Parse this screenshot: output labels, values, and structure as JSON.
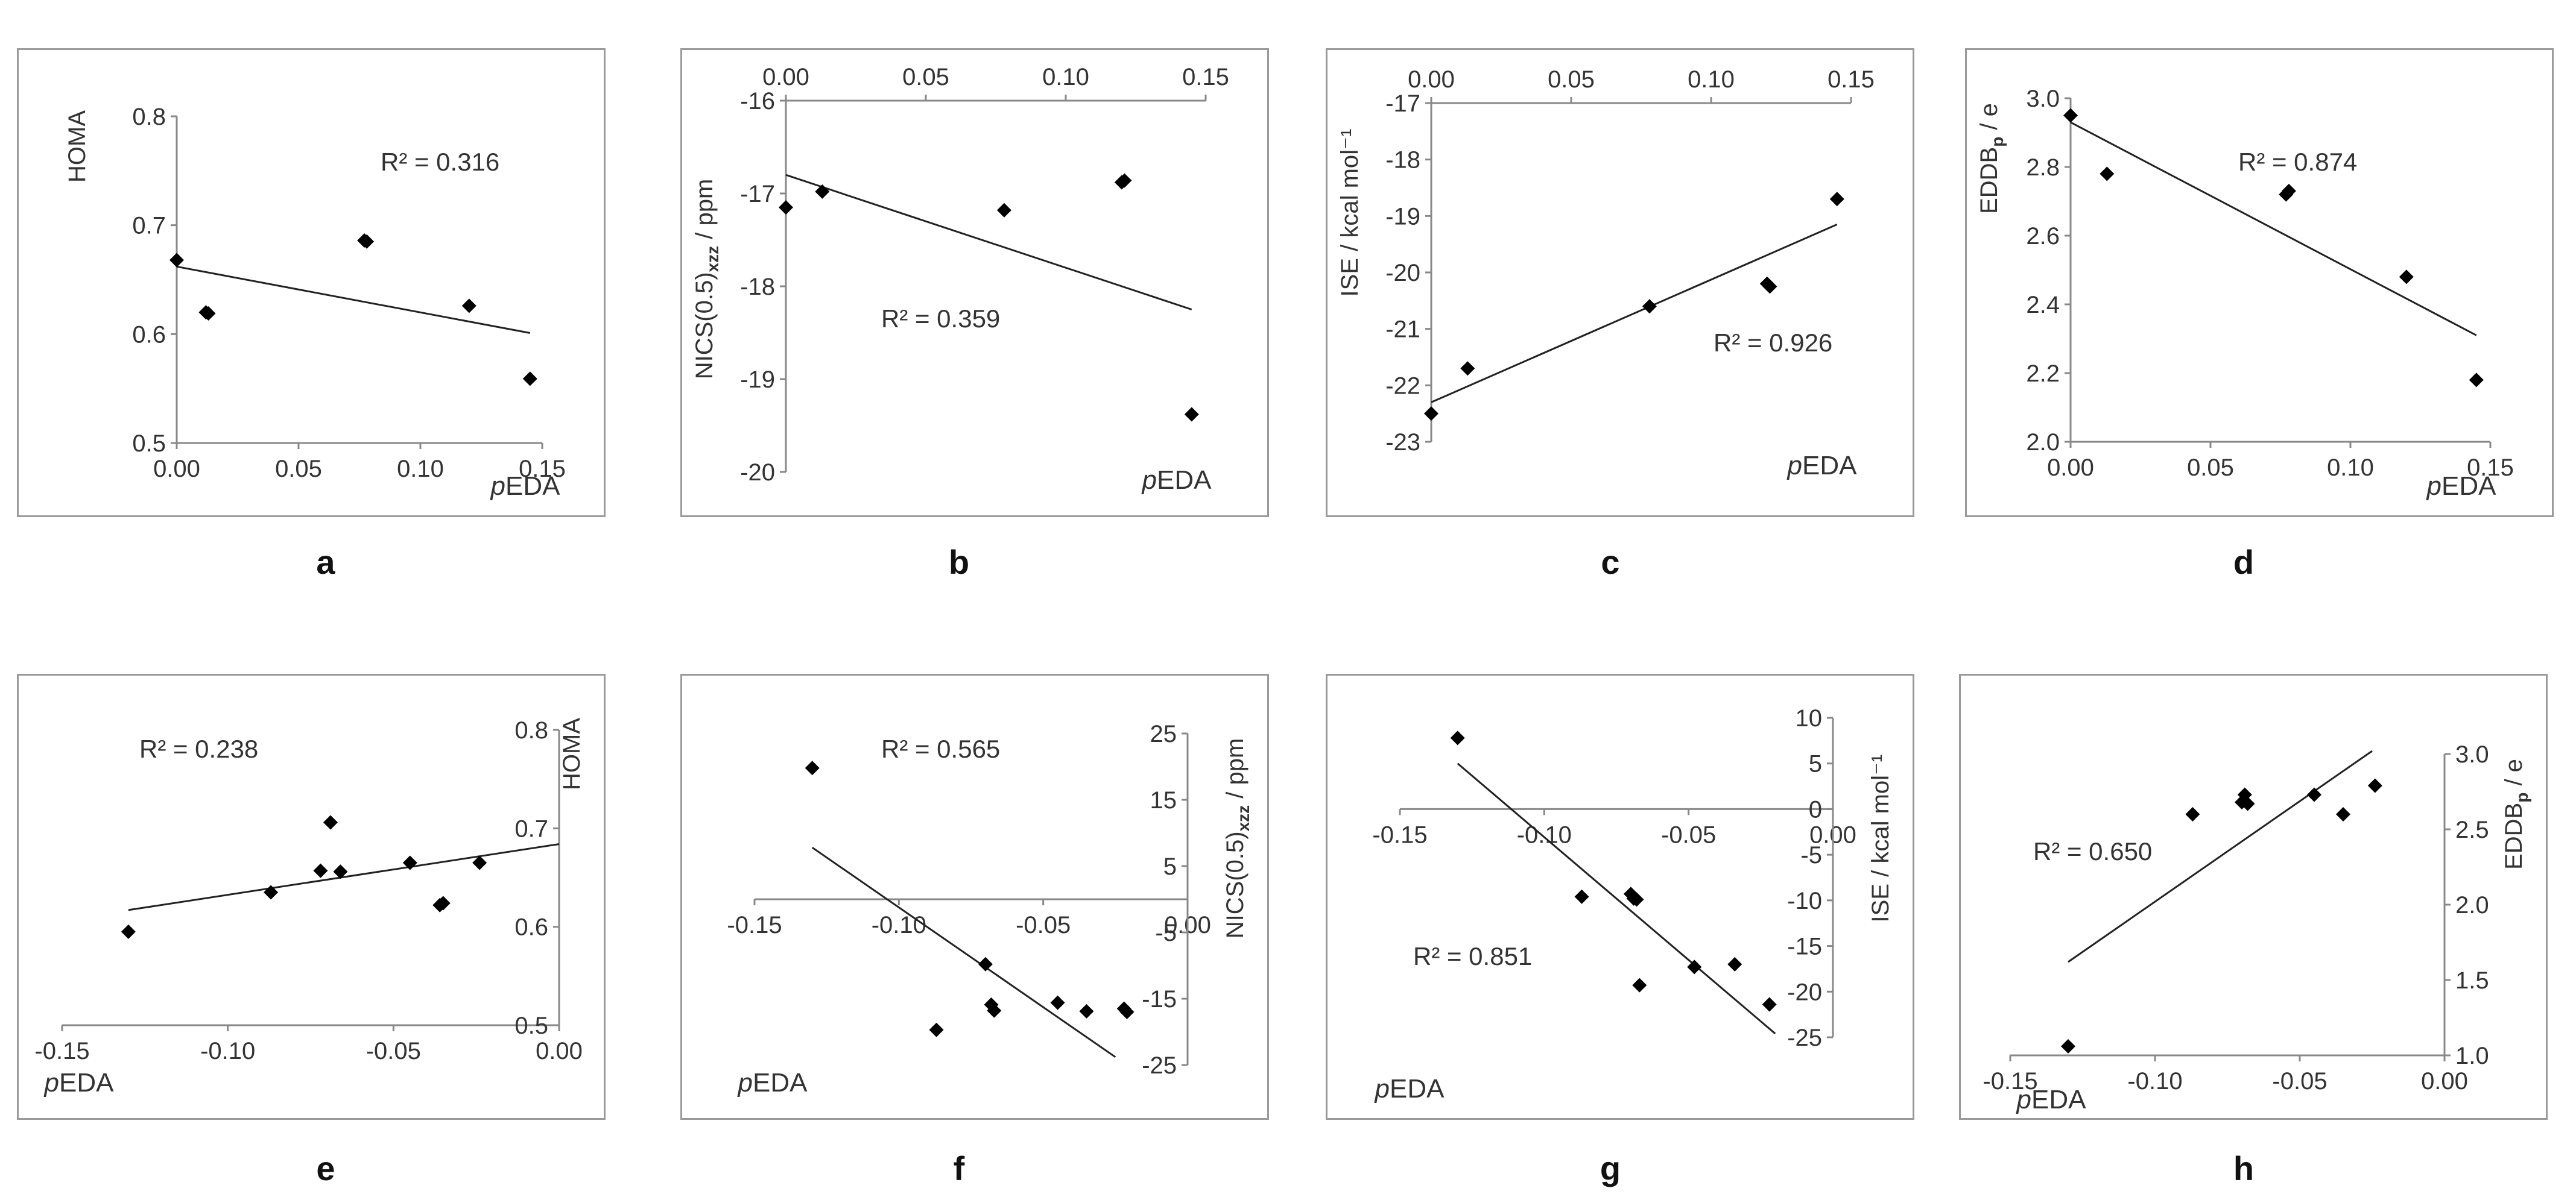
{
  "chart_data": [
    {
      "id": "a",
      "type": "scatter",
      "panel_label": "a",
      "xlabel_prefix": "p",
      "xlabel_rest": "EDA",
      "ylabel": "HOMA",
      "xlim": [
        0,
        0.15
      ],
      "ylim": [
        0.5,
        0.8
      ],
      "xticks": [
        0,
        0.05,
        0.1,
        0.15
      ],
      "xtick_labels": [
        "0.00",
        "0.05",
        "0.10",
        "0.15"
      ],
      "yticks": [
        0.5,
        0.6,
        0.7,
        0.8
      ],
      "ytick_labels": [
        "0.5",
        "0.6",
        "0.7",
        "0.8"
      ],
      "x": [
        0.0,
        0.012,
        0.013,
        0.077,
        0.078,
        0.12,
        0.145
      ],
      "y": [
        0.668,
        0.62,
        0.619,
        0.686,
        0.685,
        0.626,
        0.559
      ],
      "trendline": [
        [
          0.0,
          0.662
        ],
        [
          0.145,
          0.601
        ]
      ],
      "r2": "R² = 0.316"
    },
    {
      "id": "b",
      "type": "scatter",
      "panel_label": "b",
      "xlabel_prefix": "p",
      "xlabel_rest": "EDA",
      "ylabel": "NICS(0.5)",
      "ylabel_sub": "xzz",
      "ylabel_suffix": " / ppm",
      "xlim": [
        0,
        0.15
      ],
      "ylim": [
        -20,
        -16
      ],
      "xticks": [
        0,
        0.05,
        0.1,
        0.15
      ],
      "xtick_labels": [
        "0.00",
        "0.05",
        "0.10",
        "0.15"
      ],
      "yticks": [
        -20,
        -19,
        -18,
        -17,
        -16
      ],
      "ytick_labels": [
        "-20",
        "-19",
        "-18",
        "-17",
        "-16"
      ],
      "x": [
        0.0,
        0.013,
        0.078,
        0.12,
        0.121,
        0.145
      ],
      "y": [
        -17.15,
        -16.98,
        -17.18,
        -16.88,
        -16.86,
        -19.38
      ],
      "trendline": [
        [
          0.0,
          -16.8
        ],
        [
          0.145,
          -18.25
        ]
      ],
      "r2": "R² = 0.359"
    },
    {
      "id": "c",
      "type": "scatter",
      "panel_label": "c",
      "xlabel_prefix": "p",
      "xlabel_rest": "EDA",
      "ylabel": "ISE / kcal mol⁻¹",
      "xlim": [
        0,
        0.15
      ],
      "ylim": [
        -23,
        -17
      ],
      "xticks": [
        0,
        0.05,
        0.1,
        0.15
      ],
      "xtick_labels": [
        "0.00",
        "0.05",
        "0.10",
        "0.15"
      ],
      "yticks": [
        -23,
        -22,
        -21,
        -20,
        -19,
        -18,
        -17
      ],
      "ytick_labels": [
        "-23",
        "-22",
        "-21",
        "-20",
        "-19",
        "-18",
        "-17"
      ],
      "x": [
        0.0,
        0.013,
        0.078,
        0.12,
        0.121,
        0.145
      ],
      "y": [
        -22.5,
        -21.7,
        -20.6,
        -20.2,
        -20.25,
        -18.7
      ],
      "trendline": [
        [
          0.0,
          -22.3
        ],
        [
          0.145,
          -19.15
        ]
      ],
      "r2": "R² = 0.926"
    },
    {
      "id": "d",
      "type": "scatter",
      "panel_label": "d",
      "xlabel_prefix": "p",
      "xlabel_rest": "EDA",
      "ylabel": "EDDB",
      "ylabel_sub": "p",
      "ylabel_suffix": " / e",
      "xlim": [
        0,
        0.15
      ],
      "ylim": [
        2.0,
        3.0
      ],
      "xticks": [
        0,
        0.05,
        0.1,
        0.15
      ],
      "xtick_labels": [
        "0.00",
        "0.05",
        "0.10",
        "0.15"
      ],
      "yticks": [
        2.0,
        2.2,
        2.4,
        2.6,
        2.8,
        3.0
      ],
      "ytick_labels": [
        "2.0",
        "2.2",
        "2.4",
        "2.6",
        "2.8",
        "3.0"
      ],
      "x": [
        0.0,
        0.013,
        0.077,
        0.078,
        0.12,
        0.145
      ],
      "y": [
        2.95,
        2.78,
        2.72,
        2.73,
        2.48,
        2.18
      ],
      "trendline": [
        [
          0.0,
          2.93
        ],
        [
          0.145,
          2.31
        ]
      ],
      "r2": "R² = 0.874"
    },
    {
      "id": "e",
      "type": "scatter",
      "panel_label": "e",
      "xlabel_prefix": "p",
      "xlabel_rest": "EDA",
      "ylabel": "HOMA",
      "xlim": [
        -0.15,
        0
      ],
      "ylim": [
        0.5,
        0.8
      ],
      "xticks": [
        -0.15,
        -0.1,
        -0.05,
        0
      ],
      "xtick_labels": [
        "-0.15",
        "-0.10",
        "-0.05",
        "0.00"
      ],
      "yticks": [
        0.5,
        0.6,
        0.7,
        0.8
      ],
      "ytick_labels": [
        "0.5",
        "0.6",
        "0.7",
        "0.8"
      ],
      "x": [
        -0.13,
        -0.087,
        -0.072,
        -0.069,
        -0.066,
        -0.045,
        -0.036,
        -0.035,
        -0.024
      ],
      "y": [
        0.595,
        0.635,
        0.657,
        0.706,
        0.656,
        0.665,
        0.622,
        0.624,
        0.665
      ],
      "trendline": [
        [
          -0.13,
          0.617
        ],
        [
          0.0,
          0.684
        ]
      ],
      "r2": "R² = 0.238"
    },
    {
      "id": "f",
      "type": "scatter",
      "panel_label": "f",
      "xlabel_prefix": "p",
      "xlabel_rest": "EDA",
      "ylabel": "NICS(0.5)",
      "ylabel_sub": "xzz",
      "ylabel_suffix": " / ppm",
      "xlim": [
        -0.15,
        0
      ],
      "ylim": [
        -25,
        25
      ],
      "xticks": [
        -0.15,
        -0.1,
        -0.05,
        0
      ],
      "xtick_labels": [
        "-0.15",
        "-0.10",
        "-0.05",
        "0.00"
      ],
      "yticks": [
        -25,
        -15,
        -5,
        5,
        15,
        25
      ],
      "ytick_labels": [
        "-25",
        "-15",
        "-5",
        "5",
        "15",
        "25"
      ],
      "x": [
        -0.13,
        -0.087,
        -0.07,
        -0.068,
        -0.067,
        -0.045,
        -0.035,
        -0.022,
        -0.021
      ],
      "y": [
        19.8,
        -19.7,
        -9.8,
        -15.9,
        -16.8,
        -15.6,
        -16.9,
        -16.5,
        -17.0
      ],
      "trendline": [
        [
          -0.13,
          7.8
        ],
        [
          -0.025,
          -23.8
        ]
      ],
      "r2": "R² = 0.565"
    },
    {
      "id": "g",
      "type": "scatter",
      "panel_label": "g",
      "xlabel_prefix": "p",
      "xlabel_rest": "EDA",
      "ylabel": "ISE / kcal mol⁻¹",
      "xlim": [
        -0.15,
        0
      ],
      "ylim": [
        -25,
        10
      ],
      "xticks": [
        -0.15,
        -0.1,
        -0.05,
        0
      ],
      "xtick_labels": [
        "-0.15",
        "-0.10",
        "-0.05",
        "0.00"
      ],
      "yticks": [
        -25,
        -20,
        -15,
        -10,
        -5,
        0,
        5,
        10
      ],
      "ytick_labels": [
        "-25",
        "-20",
        "-15",
        "-10",
        "-5",
        "0",
        "5",
        "10"
      ],
      "x": [
        -0.13,
        -0.087,
        -0.07,
        -0.069,
        -0.068,
        -0.067,
        -0.048,
        -0.034,
        -0.022
      ],
      "y": [
        7.8,
        -9.6,
        -9.3,
        -9.8,
        -9.9,
        -19.3,
        -17.3,
        -17.0,
        -21.4
      ],
      "trendline": [
        [
          -0.13,
          5.0
        ],
        [
          -0.02,
          -24.6
        ]
      ],
      "r2": "R² = 0.851"
    },
    {
      "id": "h",
      "type": "scatter",
      "panel_label": "h",
      "xlabel_prefix": "p",
      "xlabel_rest": "EDA",
      "ylabel": "EDDB",
      "ylabel_sub": "p",
      "ylabel_suffix": " / e",
      "xlim": [
        -0.15,
        0
      ],
      "ylim": [
        1.0,
        3.0
      ],
      "xticks": [
        -0.15,
        -0.1,
        -0.05,
        0
      ],
      "xtick_labels": [
        "-0.15",
        "-0.10",
        "-0.05",
        "0.00"
      ],
      "yticks": [
        1.0,
        1.5,
        2.0,
        2.5,
        3.0
      ],
      "ytick_labels": [
        "1.0",
        "1.5",
        "2.0",
        "2.5",
        "3.0"
      ],
      "x": [
        -0.13,
        -0.087,
        -0.07,
        -0.069,
        -0.068,
        -0.045,
        -0.035,
        -0.024
      ],
      "y": [
        1.06,
        2.6,
        2.68,
        2.73,
        2.67,
        2.73,
        2.6,
        2.79
      ],
      "trendline": [
        [
          -0.13,
          1.62
        ],
        [
          -0.025,
          3.02
        ]
      ],
      "r2": "R² = 0.650"
    }
  ]
}
